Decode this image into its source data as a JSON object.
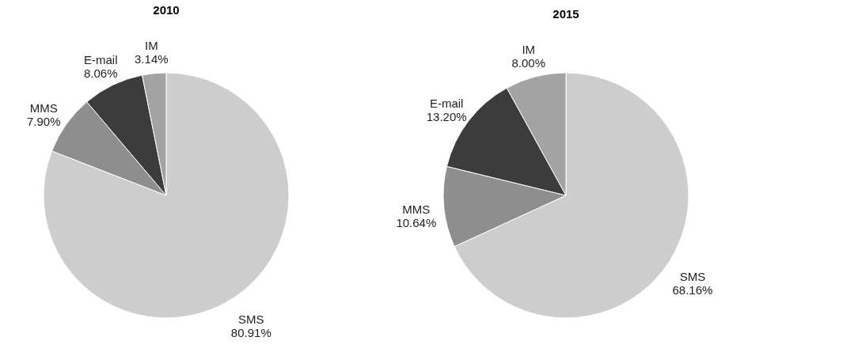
{
  "chart_data": [
    {
      "type": "pie",
      "title": "2010",
      "categories": [
        "SMS",
        "MMS",
        "E-mail",
        "IM"
      ],
      "values": [
        80.91,
        7.9,
        8.06,
        3.14
      ],
      "value_labels": [
        "80.91%",
        "7.90%",
        "8.06%",
        "3.14%"
      ],
      "colors": [
        "#cdcdcd",
        "#8e8e8e",
        "#3c3c3c",
        "#a3a3a3"
      ],
      "legend": false
    },
    {
      "type": "pie",
      "title": "2015",
      "categories": [
        "SMS",
        "MMS",
        "E-mail",
        "IM"
      ],
      "values": [
        68.16,
        10.64,
        13.2,
        8.0
      ],
      "value_labels": [
        "68.16%",
        "10.64%",
        "13.20%",
        "8.00%"
      ],
      "colors": [
        "#cdcdcd",
        "#8e8e8e",
        "#3c3c3c",
        "#a3a3a3"
      ],
      "legend": false
    }
  ]
}
